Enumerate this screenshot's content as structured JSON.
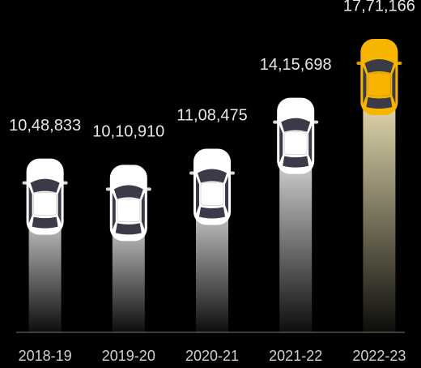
{
  "chart_data": {
    "type": "bar",
    "categories": [
      "2018-19",
      "2019-20",
      "2020-21",
      "2021-22",
      "2022-23"
    ],
    "values": [
      1048833,
      1010910,
      1108475,
      1415698,
      1771166
    ],
    "value_labels": [
      "10,48,833",
      "10,10,910",
      "11,08,475",
      "14,15,698",
      "17,71,166"
    ],
    "colors": [
      "#ffffff",
      "#ffffff",
      "#ffffff",
      "#ffffff",
      "#f7b500"
    ]
  }
}
